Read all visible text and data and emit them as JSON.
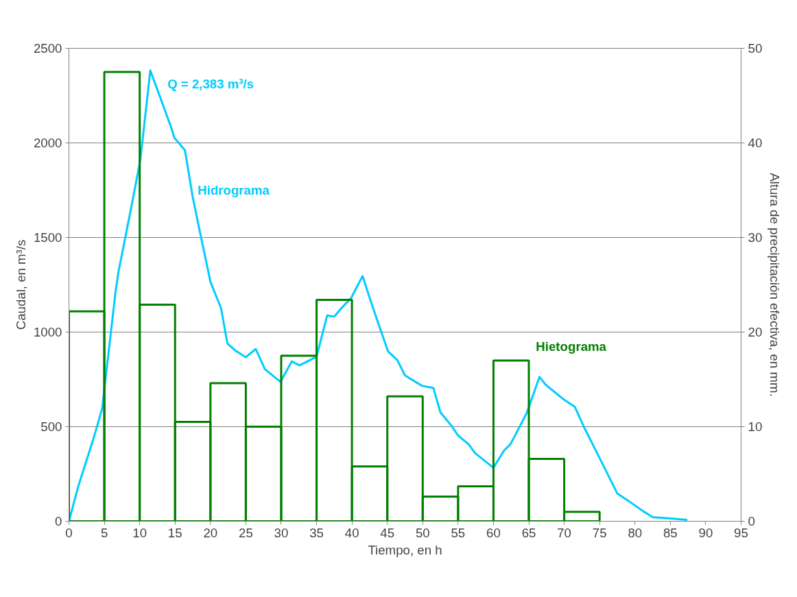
{
  "chart_data": {
    "type": "line",
    "xlabel": "Tiempo, en h",
    "ylabel": "Caudal, en m³/s",
    "y2label": "Altura de precipitación efectiva, en mm.",
    "xlim": [
      0,
      95
    ],
    "xticks": [
      0,
      5,
      10,
      15,
      20,
      25,
      30,
      35,
      40,
      45,
      50,
      55,
      60,
      65,
      70,
      75,
      80,
      85,
      90,
      95
    ],
    "ylim": [
      0,
      2500
    ],
    "yticks": [
      0,
      500,
      1000,
      1500,
      2000,
      2500
    ],
    "y2lim": [
      0,
      50
    ],
    "y2ticks": [
      0,
      10,
      20,
      30,
      40,
      50
    ],
    "grid": "y",
    "marker": "none",
    "line_style": "solid",
    "annotations": [
      {
        "text": "Q = 2,383 m³/s",
        "x": 11.5,
        "y": 2383
      }
    ],
    "series": [
      {
        "name": "Hidrograma",
        "color": "#00ccff",
        "x": [
          0,
          1.3,
          3.5,
          4.7,
          6.6,
          7.0,
          9.0,
          10.1,
          11.5,
          12.9,
          14.5,
          14.9,
          16.4,
          17.5,
          18.6,
          20.0,
          21.5,
          22.4,
          23.5,
          25.0,
          26.4,
          27.7,
          29.9,
          31.5,
          32.6,
          35.0,
          36.5,
          37.5,
          38.5,
          39.9,
          41.5,
          42.7,
          43.6,
          45.1,
          46.4,
          47.5,
          49.9,
          51.5,
          52.5,
          54.1,
          55.0,
          56.5,
          57.4,
          60.0,
          61.5,
          62.4,
          64.7,
          66.5,
          67.4,
          70.0,
          71.5,
          72.9,
          74.8,
          77.5,
          79.0,
          81.2,
          82.5,
          85.4,
          87.4
        ],
        "values": [
          0,
          182,
          440,
          597,
          1217,
          1317,
          1696,
          1912,
          2383,
          2241,
          2076,
          2027,
          1961,
          1713,
          1514,
          1266,
          1126,
          940,
          903,
          867,
          911,
          804,
          737,
          845,
          824,
          870,
          1088,
          1082,
          1126,
          1181,
          1296,
          1159,
          1060,
          898,
          853,
          771,
          716,
          705,
          576,
          503,
          453,
          407,
          360,
          283,
          374,
          407,
          572,
          763,
          721,
          642,
          605,
          490,
          349,
          147,
          110,
          52,
          22,
          14,
          7
        ]
      },
      {
        "name": "Hietograma",
        "type": "bar",
        "axis": "y2",
        "color": "#008000",
        "x": [
          2.5,
          7.5,
          12.5,
          17.5,
          22.5,
          27.5,
          32.5,
          37.5,
          42.5,
          47.5,
          52.5,
          57.5,
          62.5,
          67.5,
          72.5
        ],
        "values": [
          22.2,
          47.5,
          22.9,
          10.5,
          14.6,
          10.0,
          17.5,
          23.4,
          5.8,
          13.2,
          2.6,
          3.7,
          17.0,
          6.6,
          1.0
        ]
      }
    ]
  }
}
